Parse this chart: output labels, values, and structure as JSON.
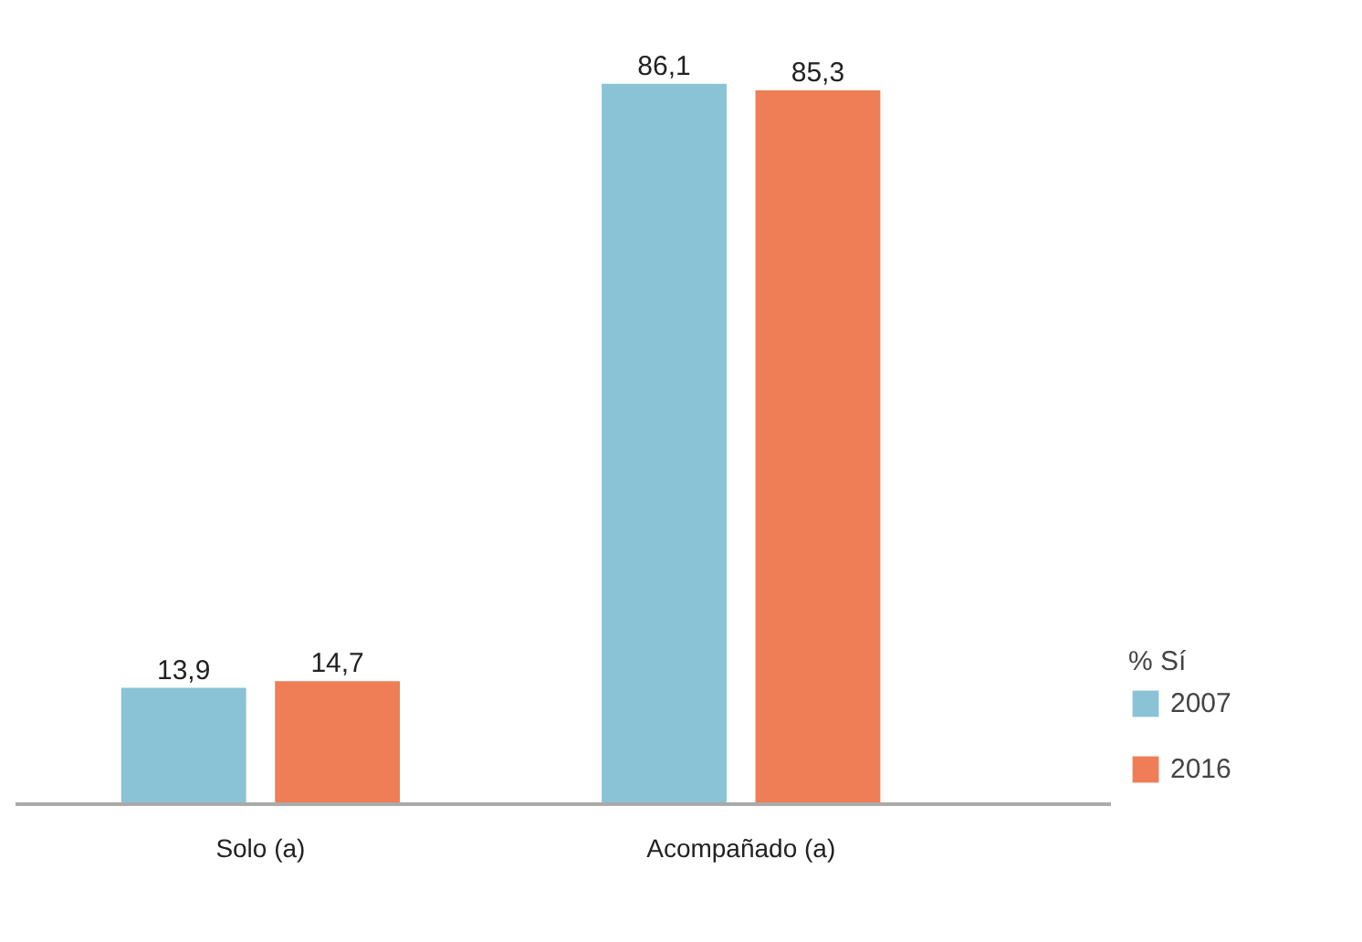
{
  "chart_data": {
    "type": "bar",
    "categories": [
      "Solo (a)",
      "Acompañado (a)"
    ],
    "series": [
      {
        "name": "2007",
        "color": "#89c3d5",
        "values": [
          13.9,
          86.1
        ],
        "value_labels": [
          "13,9",
          "86,1"
        ]
      },
      {
        "name": "2016",
        "color": "#ef7d56",
        "values": [
          14.7,
          85.3
        ],
        "value_labels": [
          "14,7",
          "85,3"
        ]
      }
    ],
    "legend": "right",
    "legend_title": "% Sí",
    "grid": false
  }
}
